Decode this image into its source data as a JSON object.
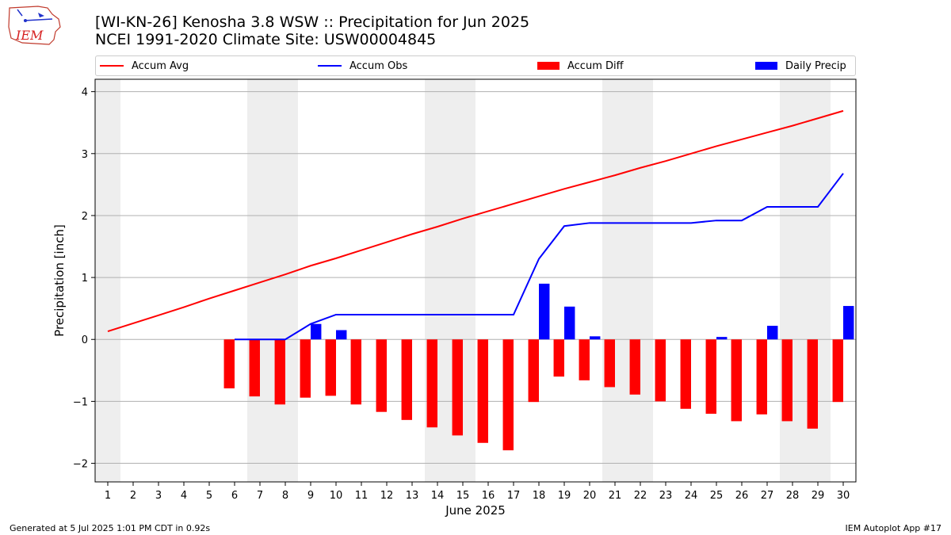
{
  "header": {
    "title_line1": "[WI-KN-26] Kenosha 3.8 WSW :: Precipitation for Jun 2025",
    "title_line2": "NCEI 1991-2020 Climate Site: USW00004845",
    "logo_text": "IEM"
  },
  "footer": {
    "left": "Generated at 5 Jul 2025 1:01 PM CDT in 0.92s",
    "right": "IEM Autoplot App #17"
  },
  "colors": {
    "avg": "#ff0000",
    "obs": "#0000ff",
    "diff": "#ff0000",
    "daily": "#0000ff",
    "weekend_shade": "#eeeeee",
    "grid": "#b0b0b0"
  },
  "chart_data": {
    "type": "bar",
    "xlabel": "June 2025",
    "ylabel": "Precipitation [inch]",
    "ylim": [
      -2.3,
      4.2
    ],
    "xlim": [
      0.5,
      30.5
    ],
    "yticks": [
      -2,
      -1,
      0,
      1,
      2,
      3,
      4
    ],
    "ytick_labels": [
      "−2",
      "−1",
      "0",
      "1",
      "2",
      "3",
      "4"
    ],
    "grid": "horizontal",
    "legend_position": "top",
    "weekend_days": [
      1,
      7,
      8,
      14,
      15,
      21,
      22,
      28,
      29
    ],
    "days": [
      1,
      2,
      3,
      4,
      5,
      6,
      7,
      8,
      9,
      10,
      11,
      12,
      13,
      14,
      15,
      16,
      17,
      18,
      19,
      20,
      21,
      22,
      23,
      24,
      25,
      26,
      27,
      28,
      29,
      30
    ],
    "series": [
      {
        "name": "Accum Avg",
        "kind": "line",
        "values": [
          0.13,
          0.26,
          0.39,
          0.52,
          0.66,
          0.79,
          0.92,
          1.05,
          1.19,
          1.31,
          1.44,
          1.57,
          1.7,
          1.82,
          1.95,
          2.07,
          2.19,
          2.31,
          2.43,
          2.54,
          2.65,
          2.77,
          2.88,
          3.0,
          3.12,
          3.23,
          3.34,
          3.45,
          3.57,
          3.69
        ]
      },
      {
        "name": "Accum Obs",
        "kind": "line",
        "x": [
          6,
          7,
          8,
          9,
          10,
          11,
          12,
          13,
          14,
          15,
          16,
          17,
          18,
          19,
          20,
          21,
          22,
          23,
          24,
          25,
          26,
          27,
          28,
          29,
          30
        ],
        "values": [
          0.0,
          0.0,
          0.0,
          0.25,
          0.4,
          0.4,
          0.4,
          0.4,
          0.4,
          0.4,
          0.4,
          0.4,
          1.3,
          1.83,
          1.88,
          1.88,
          1.88,
          1.88,
          1.88,
          1.92,
          1.92,
          2.14,
          2.14,
          2.14,
          2.68
        ]
      },
      {
        "name": "Accum Diff",
        "kind": "bar",
        "x": [
          6,
          7,
          8,
          9,
          10,
          11,
          12,
          13,
          14,
          15,
          16,
          17,
          18,
          19,
          20,
          21,
          22,
          23,
          24,
          25,
          26,
          27,
          28,
          29,
          30
        ],
        "values": [
          -0.79,
          -0.92,
          -1.05,
          -0.94,
          -0.91,
          -1.05,
          -1.17,
          -1.3,
          -1.42,
          -1.55,
          -1.67,
          -1.79,
          -1.01,
          -0.6,
          -0.66,
          -0.77,
          -0.89,
          -1.0,
          -1.12,
          -1.2,
          -1.32,
          -1.21,
          -1.32,
          -1.44,
          -1.01
        ]
      },
      {
        "name": "Daily Precip",
        "kind": "bar",
        "x": [
          6,
          7,
          8,
          9,
          10,
          11,
          12,
          13,
          14,
          15,
          16,
          17,
          18,
          19,
          20,
          21,
          22,
          23,
          24,
          25,
          26,
          27,
          28,
          29,
          30
        ],
        "values": [
          0,
          0,
          0,
          0.25,
          0.15,
          0,
          0,
          0,
          0,
          0,
          0,
          0,
          0.9,
          0.53,
          0.05,
          0,
          0,
          0,
          0,
          0.04,
          0,
          0.22,
          0,
          0,
          0.54
        ]
      }
    ]
  }
}
